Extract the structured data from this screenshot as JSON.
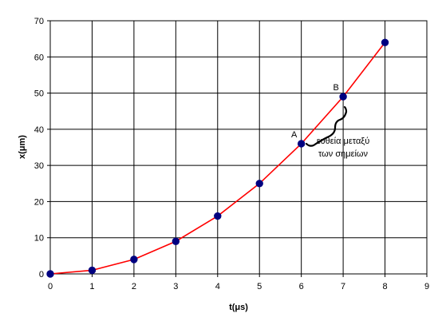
{
  "chart_data": {
    "type": "scatter",
    "title": "",
    "xlabel": "t(μs)",
    "ylabel": "x(μm)",
    "xlim": [
      0,
      9
    ],
    "ylim": [
      0,
      70
    ],
    "xticks": [
      "0",
      "1",
      "2",
      "3",
      "4",
      "5",
      "6",
      "7",
      "8",
      "9"
    ],
    "yticks": [
      "0",
      "10",
      "20",
      "30",
      "40",
      "50",
      "60",
      "70"
    ],
    "grid": true,
    "legend": "none",
    "series": [
      {
        "x": [
          0,
          1,
          2,
          3,
          4,
          5,
          6,
          7,
          8
        ],
        "y": [
          0,
          1,
          4,
          9,
          16,
          25,
          36,
          49,
          64
        ],
        "line_color": "#ff0000",
        "marker_color": "#000080"
      }
    ],
    "annotations": [
      {
        "label": "A",
        "x": 6,
        "y": 36
      },
      {
        "label": "B",
        "x": 7,
        "y": 49
      }
    ],
    "note": {
      "line1": "ευθεία μεταξύ",
      "line2": "των σημείων"
    }
  }
}
